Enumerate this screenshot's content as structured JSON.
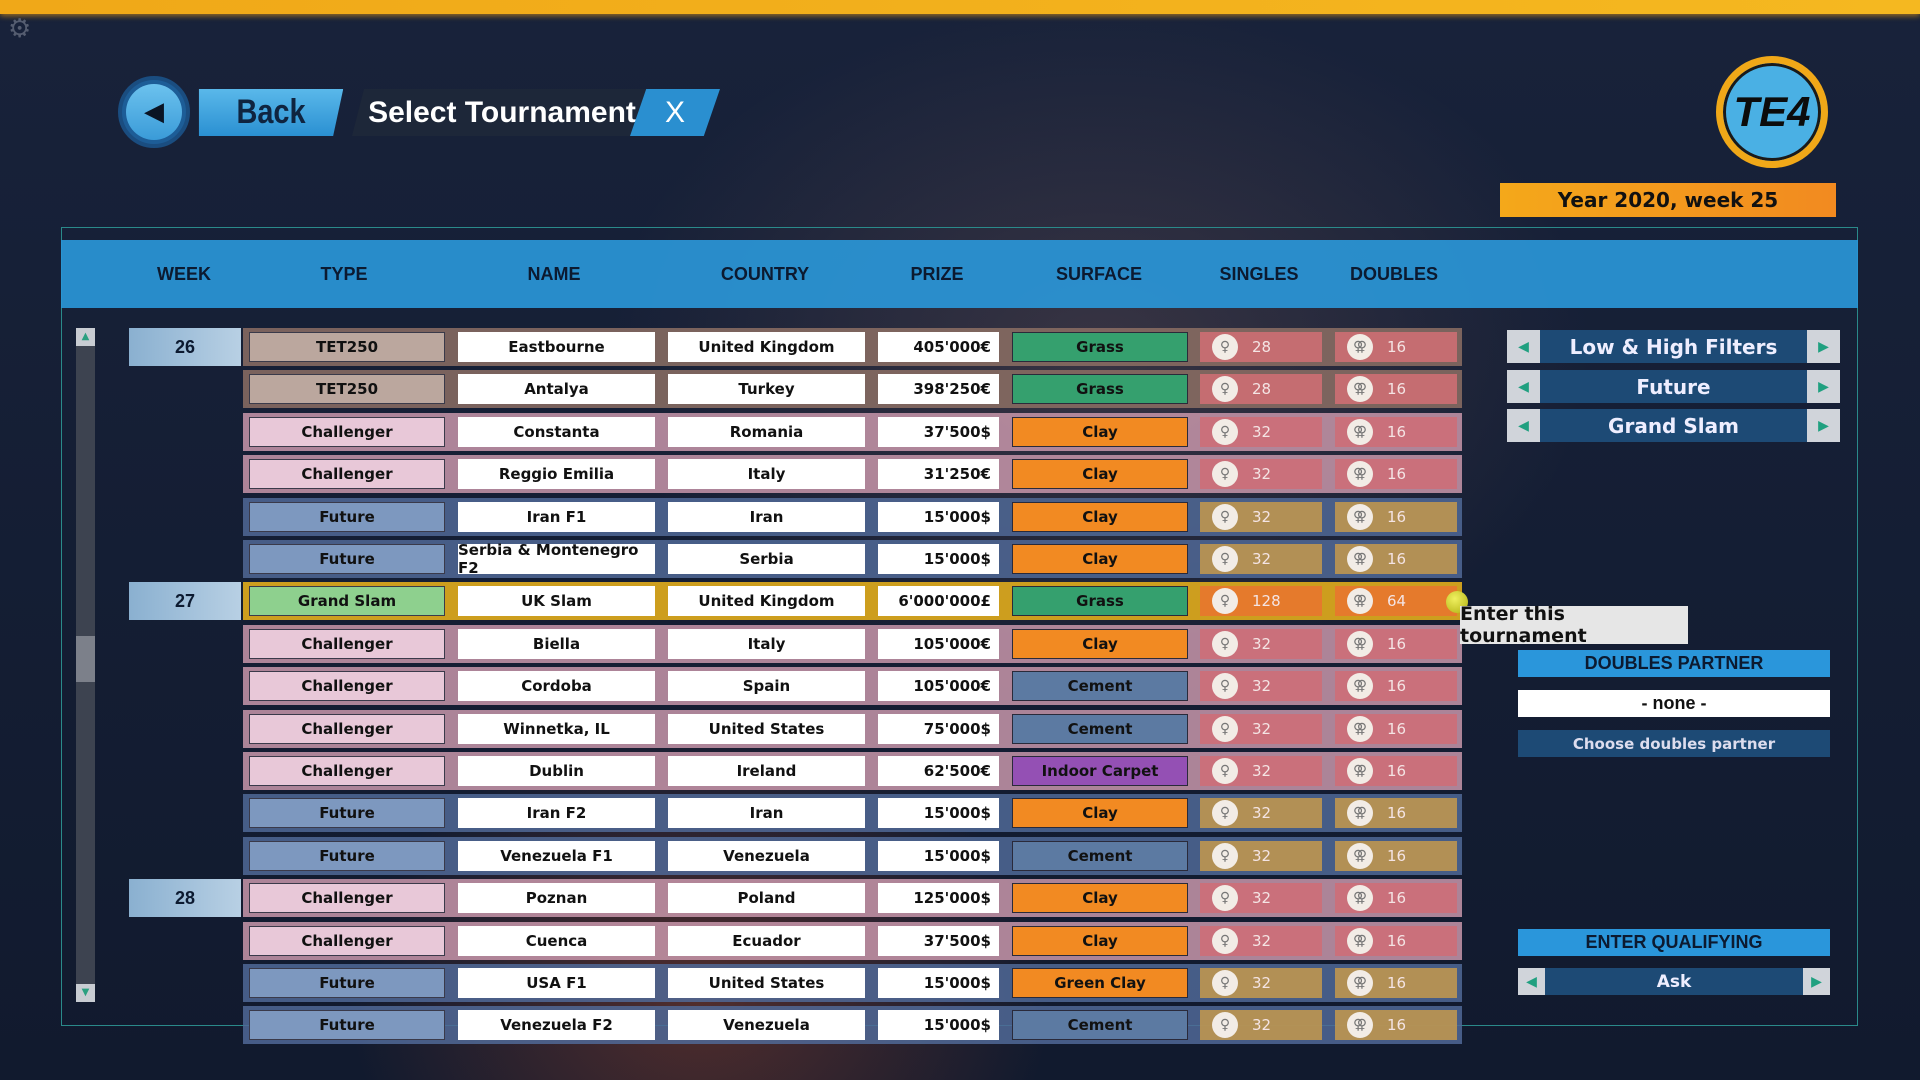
{
  "header": {
    "back_label": "Back",
    "title": "Select Tournament",
    "close_label": "X",
    "logo_text": "TE4",
    "date": "Year 2020, week 25"
  },
  "columns": [
    "WEEK",
    "TYPE",
    "NAME",
    "COUNTRY",
    "PRIZE",
    "SURFACE",
    "SINGLES",
    "DOUBLES"
  ],
  "colors": {
    "accent": "#2a96db",
    "year_bar": "#f4a81a",
    "Grass": "#35a06e",
    "Clay": "#f28a22",
    "Green Clay": "#f28a22",
    "Cement": "#5c7aa2",
    "Indoor Carpet": "#9450b4",
    "TET250": "#bba79e",
    "Challenger": "#e8c8d8",
    "Future": "#7d98bf",
    "Grand Slam": "#8ed08e"
  },
  "rows": [
    {
      "week": "26",
      "type": "TET250",
      "name": "Eastbourne",
      "country": "United Kingdom",
      "prize": "405'000€",
      "surface": "Grass",
      "singles": "28",
      "doubles": "16"
    },
    {
      "week": "",
      "type": "TET250",
      "name": "Antalya",
      "country": "Turkey",
      "prize": "398'250€",
      "surface": "Grass",
      "singles": "28",
      "doubles": "16"
    },
    {
      "week": "",
      "type": "Challenger",
      "name": "Constanta",
      "country": "Romania",
      "prize": "37'500$",
      "surface": "Clay",
      "singles": "32",
      "doubles": "16"
    },
    {
      "week": "",
      "type": "Challenger",
      "name": "Reggio Emilia",
      "country": "Italy",
      "prize": "31'250€",
      "surface": "Clay",
      "singles": "32",
      "doubles": "16"
    },
    {
      "week": "",
      "type": "Future",
      "name": "Iran F1",
      "country": "Iran",
      "prize": "15'000$",
      "surface": "Clay",
      "singles": "32",
      "doubles": "16"
    },
    {
      "week": "",
      "type": "Future",
      "name": "Serbia & Montenegro F2",
      "country": "Serbia",
      "prize": "15'000$",
      "surface": "Clay",
      "singles": "32",
      "doubles": "16"
    },
    {
      "week": "27",
      "type": "Grand Slam",
      "name": "UK Slam",
      "country": "United Kingdom",
      "prize": "6'000'000£",
      "surface": "Grass",
      "singles": "128",
      "doubles": "64",
      "selected": true
    },
    {
      "week": "",
      "type": "Challenger",
      "name": "Biella",
      "country": "Italy",
      "prize": "105'000€",
      "surface": "Clay",
      "singles": "32",
      "doubles": "16"
    },
    {
      "week": "",
      "type": "Challenger",
      "name": "Cordoba",
      "country": "Spain",
      "prize": "105'000€",
      "surface": "Cement",
      "singles": "32",
      "doubles": "16"
    },
    {
      "week": "",
      "type": "Challenger",
      "name": "Winnetka, IL",
      "country": "United States",
      "prize": "75'000$",
      "surface": "Cement",
      "singles": "32",
      "doubles": "16"
    },
    {
      "week": "",
      "type": "Challenger",
      "name": "Dublin",
      "country": "Ireland",
      "prize": "62'500€",
      "surface": "Indoor Carpet",
      "singles": "32",
      "doubles": "16"
    },
    {
      "week": "",
      "type": "Future",
      "name": "Iran F2",
      "country": "Iran",
      "prize": "15'000$",
      "surface": "Clay",
      "singles": "32",
      "doubles": "16"
    },
    {
      "week": "",
      "type": "Future",
      "name": "Venezuela F1",
      "country": "Venezuela",
      "prize": "15'000$",
      "surface": "Cement",
      "singles": "32",
      "doubles": "16"
    },
    {
      "week": "28",
      "type": "Challenger",
      "name": "Poznan",
      "country": "Poland",
      "prize": "125'000$",
      "surface": "Clay",
      "singles": "32",
      "doubles": "16"
    },
    {
      "week": "",
      "type": "Challenger",
      "name": "Cuenca",
      "country": "Ecuador",
      "prize": "37'500$",
      "surface": "Clay",
      "singles": "32",
      "doubles": "16"
    },
    {
      "week": "",
      "type": "Future",
      "name": "USA F1",
      "country": "United States",
      "prize": "15'000$",
      "surface": "Green Clay",
      "singles": "32",
      "doubles": "16"
    },
    {
      "week": "",
      "type": "Future",
      "name": "Venezuela F2",
      "country": "Venezuela",
      "prize": "15'000$",
      "surface": "Cement",
      "singles": "32",
      "doubles": "16"
    }
  ],
  "tooltip": "Enter this tournament",
  "filters": [
    "Low & High Filters",
    "Future",
    "Grand Slam"
  ],
  "doubles": {
    "header": "DOUBLES PARTNER",
    "partner": "- none -",
    "choose_label": "Choose doubles partner"
  },
  "qualifying": {
    "header": "ENTER QUALIFYING",
    "value": "Ask"
  }
}
